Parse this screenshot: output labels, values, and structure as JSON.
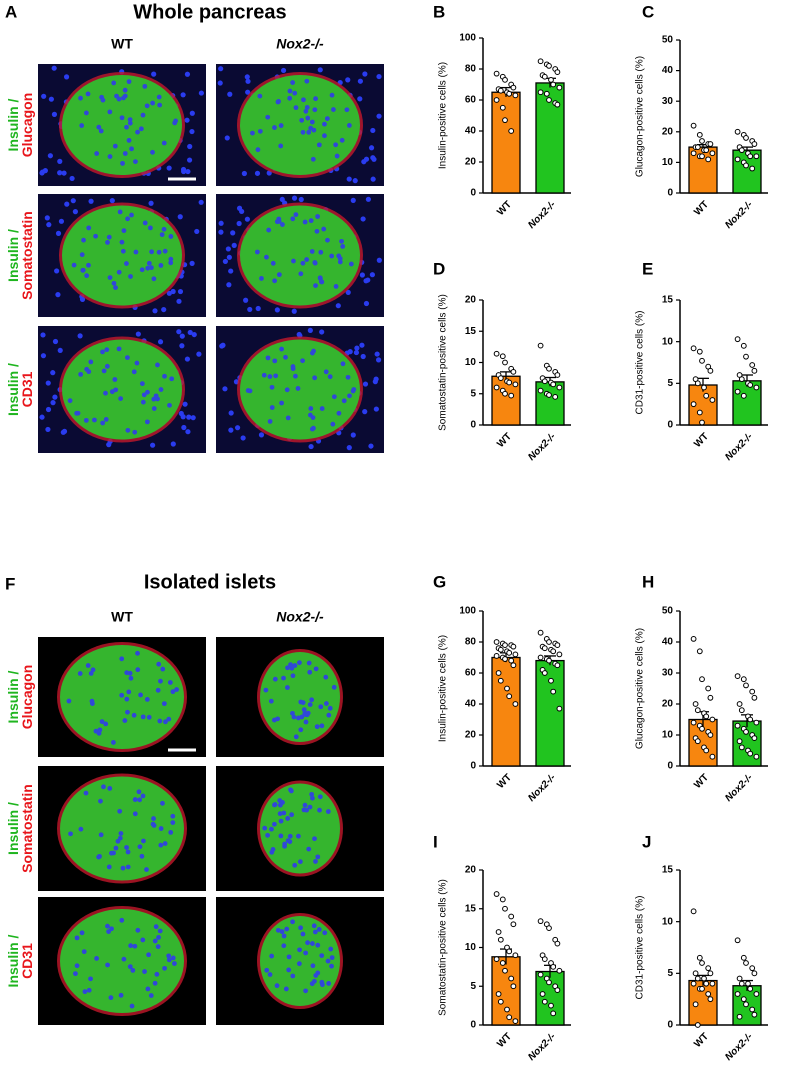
{
  "image_panels": [
    {
      "label": "A",
      "title": "Whole pancreas",
      "columns": [
        "WT",
        "Nox2-/-"
      ],
      "rows": [
        {
          "green": "Insulin /",
          "red": "Glucagon"
        },
        {
          "green": "Insulin /",
          "red": "Somatostatin"
        },
        {
          "green": "Insulin /",
          "red": "CD31"
        }
      ]
    },
    {
      "label": "F",
      "title": "Isolated islets",
      "columns": [
        "WT",
        "Nox2-/-"
      ],
      "rows": [
        {
          "green": "Insulin /",
          "red": "Glucagon"
        },
        {
          "green": "Insulin /",
          "red": "Somatostatin"
        },
        {
          "green": "Insulin /",
          "red": "CD31"
        }
      ]
    }
  ],
  "chart_data": [
    {
      "type": "bar",
      "label": "B",
      "y_label": "Insulin-positive cells (%)",
      "categories": [
        "WT",
        "Nox2-/-"
      ],
      "colors": [
        "#f7860f",
        "#21c41f"
      ],
      "values": [
        65,
        71
      ],
      "errors": [
        3,
        3
      ],
      "ylim": [
        0,
        100
      ],
      "yticks": [
        0,
        20,
        40,
        60,
        80,
        100
      ],
      "points": [
        [
          77,
          75,
          73,
          70,
          68,
          67,
          66,
          65,
          64,
          63,
          60,
          55,
          47,
          40
        ],
        [
          85,
          83,
          82,
          80,
          78,
          76,
          75,
          73,
          70,
          68,
          65,
          64,
          60,
          58,
          57
        ]
      ]
    },
    {
      "type": "bar",
      "label": "C",
      "y_label": "Glucagon-positive cells (%)",
      "categories": [
        "WT",
        "Nox2-/-"
      ],
      "colors": [
        "#f7860f",
        "#21c41f"
      ],
      "values": [
        15,
        14
      ],
      "errors": [
        0.8,
        1
      ],
      "ylim": [
        0,
        50
      ],
      "yticks": [
        0,
        10,
        20,
        30,
        40,
        50
      ],
      "points": [
        [
          22,
          19,
          17,
          16,
          16,
          15,
          15,
          14,
          14,
          13,
          13,
          12,
          12,
          11
        ],
        [
          20,
          19,
          18,
          17,
          16,
          15,
          14,
          13,
          12,
          12,
          11,
          10,
          9,
          8
        ]
      ]
    },
    {
      "type": "bar",
      "label": "D",
      "y_label": "Somatostatin-positive cells (%)",
      "categories": [
        "WT",
        "Nox2-/-"
      ],
      "colors": [
        "#f7860f",
        "#21c41f"
      ],
      "values": [
        7.8,
        6.9
      ],
      "errors": [
        0.7,
        0.7
      ],
      "ylim": [
        0,
        20
      ],
      "yticks": [
        0,
        5,
        10,
        15,
        20
      ],
      "points": [
        [
          11.4,
          11,
          10,
          9,
          8.5,
          8,
          7.5,
          7,
          6.8,
          6.5,
          6,
          5.5,
          5,
          4.7
        ],
        [
          12.7,
          9.5,
          9,
          8.5,
          8,
          7.5,
          7,
          6.8,
          6.5,
          6,
          5.5,
          5,
          4.8,
          4.5
        ]
      ]
    },
    {
      "type": "bar",
      "label": "E",
      "y_label": "CD31-positive cells (%)",
      "categories": [
        "WT",
        "Nox2-/-"
      ],
      "colors": [
        "#f7860f",
        "#21c41f"
      ],
      "values": [
        4.8,
        5.3
      ],
      "errors": [
        0.8,
        0.7
      ],
      "ylim": [
        0,
        15
      ],
      "yticks": [
        0,
        5,
        10,
        15
      ],
      "points": [
        [
          9.2,
          8.8,
          7.7,
          7,
          6.5,
          5.5,
          5,
          4.5,
          3.5,
          3,
          2.5,
          1.5,
          0.3
        ],
        [
          10.3,
          9.5,
          8.2,
          7.2,
          6.5,
          6,
          5.5,
          5,
          4.8,
          4.5,
          4,
          3.5
        ]
      ]
    },
    {
      "type": "bar",
      "label": "G",
      "y_label": "Insulin-positive cells (%)",
      "categories": [
        "WT",
        "Nox2-/-"
      ],
      "colors": [
        "#f7860f",
        "#21c41f"
      ],
      "values": [
        70,
        68
      ],
      "errors": [
        3,
        3
      ],
      "ylim": [
        0,
        100
      ],
      "yticks": [
        0,
        20,
        40,
        60,
        80,
        100
      ],
      "points": [
        [
          80,
          79,
          78,
          78,
          77,
          76,
          75,
          74,
          73,
          72,
          71,
          70,
          69,
          68,
          65,
          60,
          55,
          50,
          45,
          40
        ],
        [
          86,
          82,
          80,
          79,
          78,
          77,
          76,
          75,
          74,
          72,
          70,
          69,
          68,
          66,
          65,
          62,
          60,
          55,
          48,
          37
        ]
      ]
    },
    {
      "type": "bar",
      "label": "H",
      "y_label": "Glucagon-positive cells (%)",
      "categories": [
        "WT",
        "Nox2-/-"
      ],
      "colors": [
        "#f7860f",
        "#21c41f"
      ],
      "values": [
        15,
        14.5
      ],
      "errors": [
        2.5,
        2
      ],
      "ylim": [
        0,
        50
      ],
      "yticks": [
        0,
        10,
        20,
        30,
        40,
        50
      ],
      "points": [
        [
          41,
          37,
          28,
          25,
          22,
          20,
          18,
          17,
          16,
          15,
          14,
          13,
          12,
          11,
          10,
          9,
          8,
          6,
          5,
          3
        ],
        [
          29,
          28,
          26,
          24,
          22,
          20,
          18,
          16,
          15,
          14,
          13,
          12,
          11,
          10,
          9,
          8,
          6,
          5,
          4,
          3
        ]
      ]
    },
    {
      "type": "bar",
      "label": "I",
      "y_label": "Somatostatin-positive cells (%)",
      "categories": [
        "WT",
        "Nox2-/-"
      ],
      "colors": [
        "#f7860f",
        "#21c41f"
      ],
      "values": [
        8.8,
        6.9
      ],
      "errors": [
        1,
        0.8
      ],
      "ylim": [
        0,
        20
      ],
      "yticks": [
        0,
        5,
        10,
        15,
        20
      ],
      "points": [
        [
          16.9,
          16.2,
          15,
          14,
          13,
          12,
          11,
          10,
          9.5,
          9,
          8.5,
          8,
          7,
          6,
          5,
          4,
          3,
          2,
          1,
          0.5
        ],
        [
          13.4,
          13,
          12.5,
          11,
          10.5,
          9,
          8.5,
          8,
          7.5,
          7,
          6.5,
          6,
          5.5,
          5,
          4.5,
          4,
          3,
          2.5,
          1.5
        ]
      ]
    },
    {
      "type": "bar",
      "label": "J",
      "y_label": "CD31-positive cells (%)",
      "categories": [
        "WT",
        "Nox2-/-"
      ],
      "colors": [
        "#f7860f",
        "#21c41f"
      ],
      "values": [
        4.3,
        3.8
      ],
      "errors": [
        0.5,
        0.5
      ],
      "ylim": [
        0,
        15
      ],
      "yticks": [
        0,
        5,
        10,
        15
      ],
      "points": [
        [
          11,
          6.5,
          6,
          5.5,
          5,
          5,
          4.5,
          4.5,
          4,
          4,
          4,
          3.5,
          3.5,
          3,
          2.5,
          2,
          0
        ],
        [
          8.2,
          6.5,
          6,
          5.5,
          5,
          4.5,
          4,
          4,
          3.5,
          3,
          3,
          2.5,
          2,
          1.5,
          1,
          0.8
        ]
      ]
    }
  ]
}
